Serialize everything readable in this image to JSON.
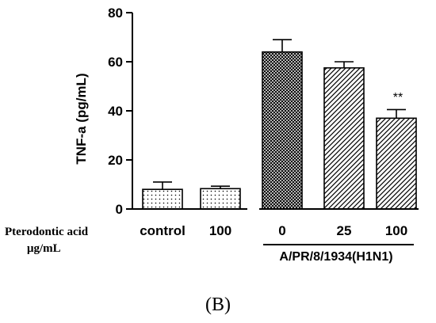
{
  "chart_data": {
    "type": "bar",
    "categories": [
      "control",
      "100",
      "0",
      "25",
      "100"
    ],
    "values": [
      8,
      8.3,
      64,
      57.5,
      37
    ],
    "errors": [
      3,
      1,
      5,
      2.5,
      3.5
    ],
    "bar_patterns": [
      "dots",
      "dots",
      "crosshatch",
      "diagonal",
      "diagonal"
    ],
    "ylabel": "TNF-a  (pg/mL)",
    "ylim": [
      0,
      80
    ],
    "yticks": [
      "0",
      "20",
      "40",
      "60",
      "80"
    ],
    "row_label_line1": "Pterodontic acid",
    "row_label_line2": "μg/mL",
    "group_label": "A/PR/8/1934(H1N1)",
    "annotation": "**",
    "panel_label": "(B)"
  }
}
